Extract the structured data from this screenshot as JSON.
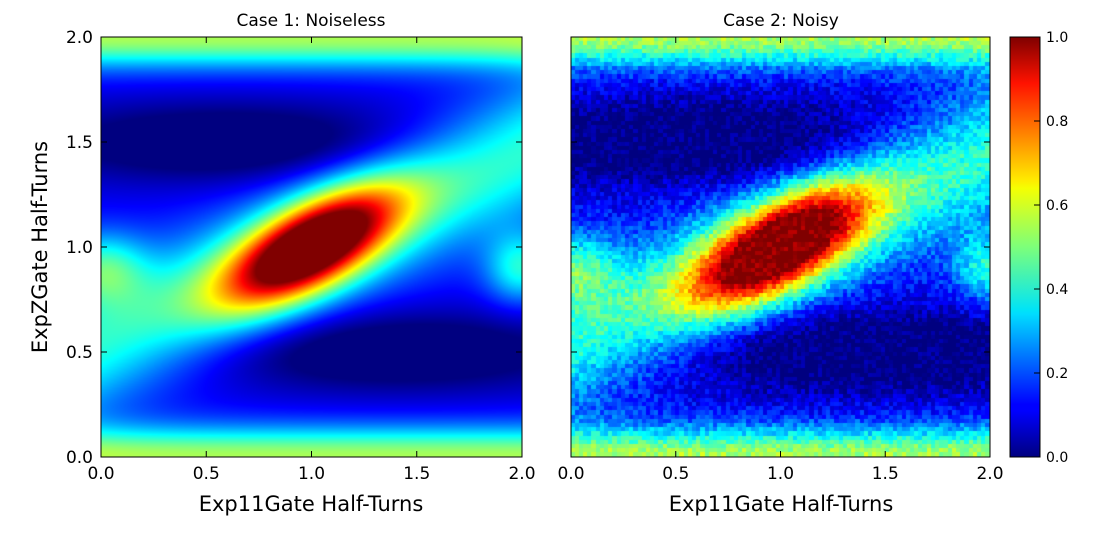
{
  "chart_data": [
    {
      "type": "heatmap",
      "title": "Case 1: Noiseless",
      "xlabel": "Exp11Gate Half-Turns",
      "ylabel": "ExpZGate Half-Turns",
      "xlim": [
        0.0,
        2.0
      ],
      "ylim": [
        0.0,
        2.0
      ],
      "xticks": [
        "0.0",
        "0.5",
        "1.0",
        "1.5",
        "2.0"
      ],
      "yticks": [
        "0.0",
        "0.5",
        "1.0",
        "1.5",
        "2.0"
      ],
      "noise": false,
      "peak": {
        "x": 1.0,
        "y": 1.0,
        "value": 1.0
      },
      "colormap": "jet"
    },
    {
      "type": "heatmap",
      "title": "Case 2: Noisy",
      "xlabel": "Exp11Gate Half-Turns",
      "ylabel": "",
      "xlim": [
        0.0,
        2.0
      ],
      "ylim": [
        0.0,
        2.0
      ],
      "xticks": [
        "0.0",
        "0.5",
        "1.0",
        "1.5",
        "2.0"
      ],
      "yticks": [],
      "noise": true,
      "peak": {
        "x": 1.0,
        "y": 1.0,
        "value": 1.0
      },
      "colormap": "jet"
    }
  ],
  "colorbar": {
    "min": 0.0,
    "max": 1.0,
    "ticks": [
      "0.0",
      "0.2",
      "0.4",
      "0.6",
      "0.8",
      "1.0"
    ]
  }
}
